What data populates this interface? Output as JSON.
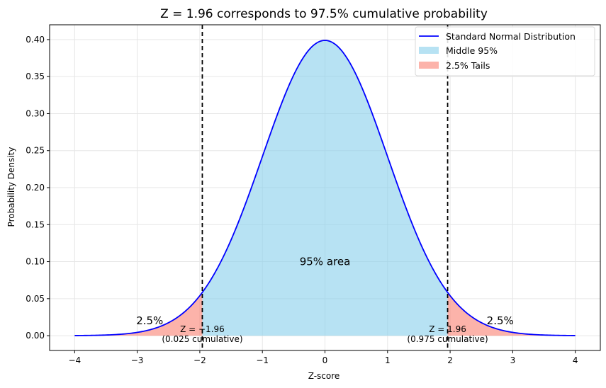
{
  "chart_data": {
    "type": "line",
    "title": "Z = 1.96 corresponds to 97.5% cumulative probability",
    "xlabel": "Z-score",
    "ylabel": "Probability Density",
    "xlim": [
      -4.4,
      4.4
    ],
    "ylim": [
      -0.02,
      0.42
    ],
    "x_ticks": [
      -4,
      -3,
      -2,
      -1,
      0,
      1,
      2,
      3,
      4
    ],
    "x_tick_labels": [
      "−4",
      "−3",
      "−2",
      "−1",
      "0",
      "1",
      "2",
      "3",
      "4"
    ],
    "y_ticks": [
      0.0,
      0.05,
      0.1,
      0.15,
      0.2,
      0.25,
      0.3,
      0.35,
      0.4
    ],
    "y_tick_labels": [
      "0.00",
      "0.05",
      "0.10",
      "0.15",
      "0.20",
      "0.25",
      "0.30",
      "0.35",
      "0.40"
    ],
    "grid": true,
    "legend_position": "top-right",
    "series": [
      {
        "name": "Standard Normal Distribution",
        "kind": "line",
        "color": "#0000ff",
        "x_range": [
          -4,
          4
        ],
        "mean": 0,
        "std": 1
      },
      {
        "name": "Middle 95%",
        "kind": "fill",
        "color": "#87ceeb",
        "x_range": [
          -1.96,
          1.96
        ]
      },
      {
        "name": "2.5% Tails",
        "kind": "fill",
        "color": "#fa8072",
        "x_ranges": [
          [
            -4,
            -1.96
          ],
          [
            1.96,
            4
          ]
        ]
      }
    ],
    "vertical_lines": [
      {
        "x": -1.96,
        "style": "dashed",
        "color": "#000000"
      },
      {
        "x": 1.96,
        "style": "dashed",
        "color": "#000000"
      }
    ],
    "annotations": {
      "center": {
        "x": 0,
        "y": 0.1,
        "text": "95% area"
      },
      "left_tail": {
        "x": -2.8,
        "y": 0.02,
        "text": "2.5%"
      },
      "right_tail": {
        "x": 2.8,
        "y": 0.02,
        "text": "2.5%"
      },
      "left_z": {
        "x": -1.96,
        "y": 0.0,
        "line1": "Z = −1.96",
        "line2": "(0.025 cumulative)"
      },
      "right_z": {
        "x": 1.96,
        "y": 0.0,
        "line1": "Z = 1.96",
        "line2": "(0.975 cumulative)"
      }
    }
  }
}
